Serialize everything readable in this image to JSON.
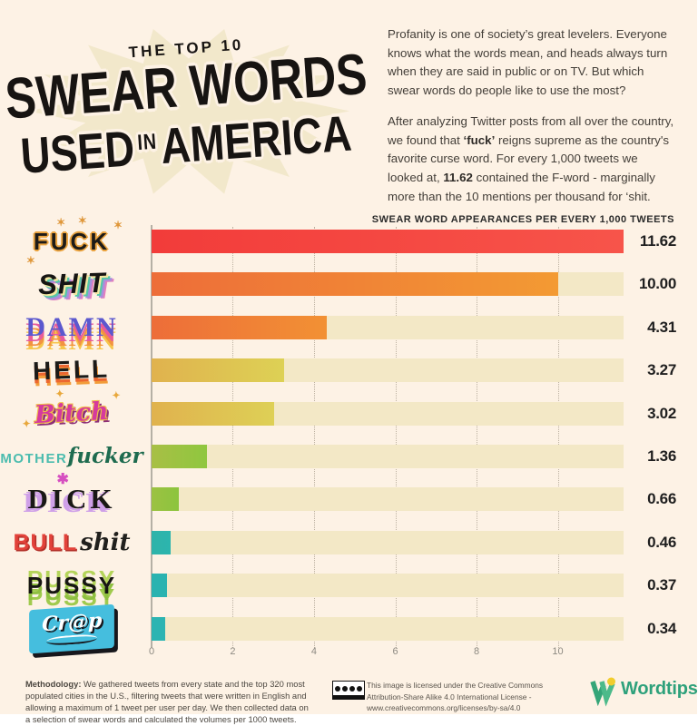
{
  "page": {
    "bg": "#fdf2e5"
  },
  "header": {
    "kicker": "THE TOP 10",
    "title_line1": "SWEAR WORDS",
    "title_line2_word1": "USED",
    "title_line2_word2": "IN",
    "title_line2_word3": "AMERICA",
    "burst_color": "#f2e8cb"
  },
  "intro": {
    "p1": "Profanity is one of society’s great levelers. Everyone knows what the words mean, and heads always turn when they are said in public or on TV. But which swear words do people like to use the most?",
    "p2_a": "After analyzing Twitter posts from all over the country, we found that ",
    "p2_bold1": "‘fuck’",
    "p2_b": " reigns supreme as the country's favorite curse word. For every 1,000 tweets we looked at, ",
    "p2_bold2": "11.62",
    "p2_c": " contained the F-word - marginally more than the 10 mentions per thousand for ‘shit."
  },
  "chart_data": {
    "type": "bar",
    "orientation": "horizontal",
    "title": "SWEAR WORD APPEARANCES PER EVERY 1,000 TWEETS",
    "categories": [
      "Fuck",
      "Shit",
      "Damn",
      "Hell",
      "Bitch",
      "Motherfucker",
      "Dick",
      "Bullshit",
      "Pussy",
      "Crap"
    ],
    "values": [
      11.62,
      10.0,
      4.31,
      3.27,
      3.02,
      1.36,
      0.66,
      0.46,
      0.37,
      0.34
    ],
    "value_labels": [
      "11.62",
      "10.00",
      "4.31",
      "3.27",
      "3.02",
      "1.36",
      "0.66",
      "0.46",
      "0.37",
      "0.34"
    ],
    "xlim": [
      0,
      11.62
    ],
    "xticks": [
      0,
      2,
      4,
      6,
      8,
      10
    ],
    "xtick_labels": [
      "0",
      "2",
      "4",
      "6",
      "8",
      "10"
    ],
    "grid": "dotted-vertical",
    "legend": "none",
    "track_color": "#f3e8c6",
    "bar_colors_from": [
      "#f23c3a",
      "#ed6d39",
      "#ed6d39",
      "#e0b24e",
      "#e0b24e",
      "#a8bf45",
      "#9cc242",
      "#2fb3a9",
      "#2ab3b0",
      "#2cb4b2"
    ],
    "bar_colors_to": [
      "#f7544a",
      "#f39a33",
      "#f29134",
      "#ddd155",
      "#ded056",
      "#8fc73f",
      "#8cc43e",
      "#2cb5ae",
      "#2ab3b0",
      "#2cb4b2"
    ]
  },
  "words": {
    "fuck": "FUCK",
    "shit": "SHIT",
    "damn": "DAMN",
    "hell": "HELL",
    "bitch": "Bitch",
    "mother_part1": "MOTHER",
    "mother_part2": "fucker",
    "dick": "DICK",
    "bull_part1": "BULL",
    "bull_part2": "shit",
    "pussy": "PUSSY",
    "crap": "Cr@p",
    "star_glyph": "✶",
    "sparkle_glyph": "✦",
    "asterisk_glyph": "✱"
  },
  "footer": {
    "methodology_label": "Methodology:",
    "methodology_text": " We gathered tweets from every state and the top 320 most populated cities in the U.S., filtering tweets that were written in English and allowing a maximum of 1 tweet per user per day. We then collected data on a selection of swear words and calculated the volumes per 1000 tweets.",
    "license_text": "This image is licensed under the Creative Commons Attribution-Share Alike 4.0 International License - www.creativecommons.org/licenses/by-sa/4.0",
    "logo_text": "Wordtips",
    "logo_green": "#2ea17b",
    "logo_dot_yellow": "#f2cd2d"
  }
}
